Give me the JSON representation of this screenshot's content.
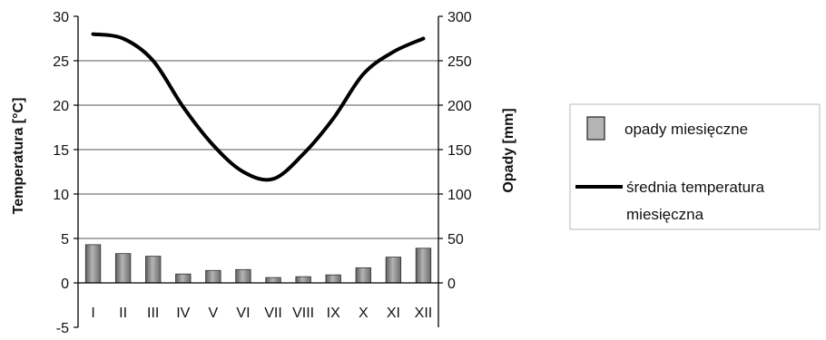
{
  "chart_data": {
    "type": "bar",
    "title": "",
    "categories": [
      "I",
      "II",
      "III",
      "IV",
      "V",
      "VI",
      "VII",
      "VIII",
      "IX",
      "X",
      "XI",
      "XII"
    ],
    "axes": {
      "left": {
        "label": "Temperatura [°C]",
        "range": [
          -5,
          30
        ],
        "ticks": [
          "-5",
          "0",
          "5",
          "10",
          "15",
          "20",
          "25",
          "30"
        ]
      },
      "right": {
        "label": "Opady [mm]",
        "range": [
          -50,
          300
        ],
        "ticks": [
          "0",
          "50",
          "100",
          "150",
          "200",
          "250",
          "300"
        ]
      }
    },
    "grid": "horizontal lines at 5, 10, 15, 20, 25 (left axis)",
    "legend_placement": "right",
    "series": [
      {
        "name": "opady miesięczne",
        "type": "bar",
        "axis": "right",
        "color": "#8c8c8c",
        "values": [
          43,
          33,
          30,
          10,
          14,
          15,
          6,
          7,
          9,
          17,
          29,
          39
        ]
      },
      {
        "name": "średnia temperatura miesięczna",
        "type": "line",
        "axis": "left",
        "color": "#000000",
        "values": [
          28.0,
          27.5,
          25.0,
          19.8,
          15.5,
          12.5,
          11.7,
          14.5,
          18.5,
          23.5,
          26.0,
          27.5
        ]
      }
    ]
  }
}
